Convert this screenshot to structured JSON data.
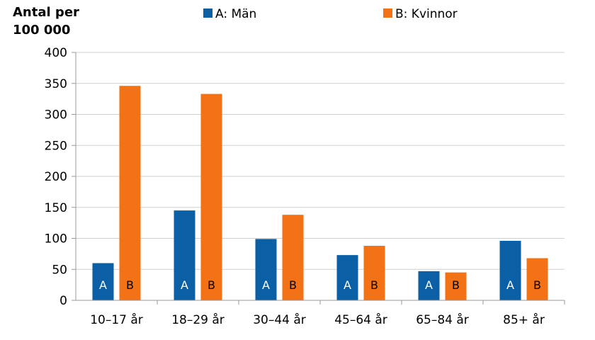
{
  "chart_data": {
    "type": "bar",
    "ylabel_lines": [
      "Antal per",
      "100 000"
    ],
    "categories": [
      "10–17 år",
      "18–29 år",
      "30–44 år",
      "45–64 år",
      "65–84 år",
      "85+ år"
    ],
    "series": [
      {
        "name": "A: Män",
        "letter": "A",
        "color": "#0b5fa5",
        "values": [
          60,
          145,
          99,
          73,
          47,
          96
        ]
      },
      {
        "name": "B: Kvinnor",
        "letter": "B",
        "color": "#f47216",
        "values": [
          346,
          333,
          138,
          88,
          45,
          68
        ]
      }
    ],
    "ylim": [
      0,
      400
    ],
    "yticks": [
      0,
      50,
      100,
      150,
      200,
      250,
      300,
      350,
      400
    ],
    "grid": true,
    "legend_position": "top"
  }
}
